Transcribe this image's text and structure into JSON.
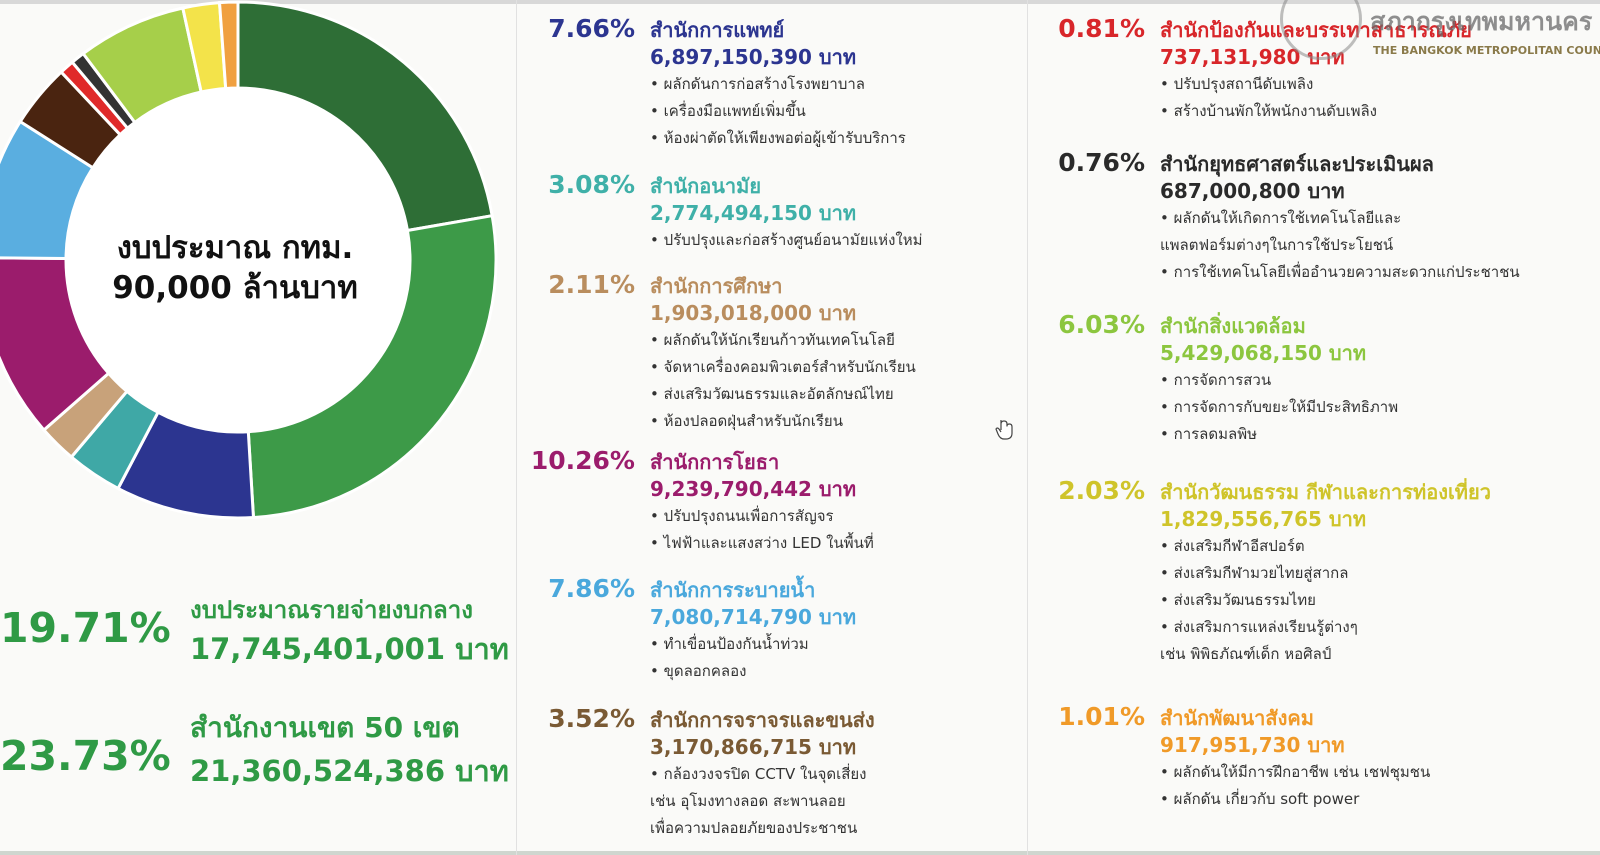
{
  "chart_data": {
    "type": "pie",
    "title": "งบประมาณ กทม.",
    "subtitle": "90,000 ล้านบาท",
    "slices": [
      {
        "label": "งบประมาณรายจ่ายงบกลาง",
        "value": 19.71,
        "color": "#2e6e36"
      },
      {
        "label": "สำนักงานเขต 50 เขต",
        "value": 23.73,
        "color": "#3d9a48"
      },
      {
        "label": "สำนักการแพทย์",
        "value": 7.66,
        "color": "#2c3590"
      },
      {
        "label": "สำนักอนามัย",
        "value": 3.08,
        "color": "#3fa8a6"
      },
      {
        "label": "สำนักการศึกษา",
        "value": 2.11,
        "color": "#c8a27a"
      },
      {
        "label": "สำนักการโยธา",
        "value": 10.26,
        "color": "#9b1c6c"
      },
      {
        "label": "สำนักการระบายน้ำ",
        "value": 7.86,
        "color": "#5aaee0"
      },
      {
        "label": "สำนักการจราจรและขนส่ง",
        "value": 3.52,
        "color": "#4a2410"
      },
      {
        "label": "สำนักป้องกันและบรรเทาสาธารณภัย",
        "value": 0.81,
        "color": "#e02a2a"
      },
      {
        "label": "สำนักยุทธศาสตร์และประเมินผล",
        "value": 0.76,
        "color": "#333333"
      },
      {
        "label": "สำนักสิ่งแวดล้อม",
        "value": 6.03,
        "color": "#a6cf4a"
      },
      {
        "label": "สำนักวัฒนธรรม กีฬาและการท่องเที่ยว",
        "value": 2.03,
        "color": "#f3e34a"
      },
      {
        "label": "สำนักพัฒนาสังคม",
        "value": 1.01,
        "color": "#f0a040"
      }
    ]
  },
  "featured": [
    {
      "pct": "19.71%",
      "name": "งบประมาณรายจ่ายงบกลาง",
      "amount": "17,745,401,001 บาท"
    },
    {
      "pct": "23.73%",
      "name": "สำนักงานเขต 50 เขต",
      "amount": "21,360,524,386 บาท"
    }
  ],
  "offices": [
    {
      "pct": "7.66%",
      "name": "สำนักการแพทย์",
      "amount": "6,897,150,390 บาท",
      "color": "#2c3590",
      "bullets": [
        "• ผลักดันการก่อสร้างโรงพยาบาล",
        "• เครื่องมือแพทย์เพิ่มขึ้น",
        "• ห้องผ่าตัดให้เพียงพอต่อผู้เข้ารับบริการ"
      ]
    },
    {
      "pct": "3.08%",
      "name": "สำนักอนามัย",
      "amount": "2,774,494,150 บาท",
      "color": "#3fb0a8",
      "bullets": [
        "• ปรับปรุงและก่อสร้างศูนย์อนามัยแห่งใหม่"
      ]
    },
    {
      "pct": "2.11%",
      "name": "สำนักการศึกษา",
      "amount": "1,903,018,000 บาท",
      "color": "#b98d5e",
      "bullets": [
        "• ผลักดันให้นักเรียนก้าวทันเทคโนโลยี",
        "• จัดหาเครื่องคอมพิวเตอร์สำหรับนักเรียน",
        "• ส่งเสริมวัฒนธรรมและอัตลักษณ์ไทย",
        "• ห้องปลอดฝุ่นสำหรับนักเรียน"
      ]
    },
    {
      "pct": "10.26%",
      "name": "สำนักการโยธา",
      "amount": "9,239,790,442 บาท",
      "color": "#9b1c6c",
      "bullets": [
        "• ปรับปรุงถนนเพื่อการสัญจร",
        "• ไฟฟ้าและแสงสว่าง LED ในพื้นที่"
      ]
    },
    {
      "pct": "7.86%",
      "name": "สำนักการระบายน้ำ",
      "amount": "7,080,714,790 บาท",
      "color": "#4aa8dc",
      "bullets": [
        "• ทำเขื่อนป้องกันน้ำท่วม",
        "• ขุดลอกคลอง"
      ]
    },
    {
      "pct": "3.52%",
      "name": "สำนักการจราจรและขนส่ง",
      "amount": "3,170,866,715 บาท",
      "color": "#7a5a34",
      "bullets": [
        "• กล้องวงจรปิด CCTV ในจุดเสี่ยง",
        "เช่น อุโมงทางลอด สะพานลอย",
        "เพื่อความปลอยภัยของประชาชน"
      ]
    },
    {
      "pct": "0.81%",
      "name": "สำนักป้องกันและบรรเทาสาธารณภัย",
      "amount": "737,131,980 บาท",
      "color": "#d8262a",
      "bullets": [
        "• ปรับปรุงสถานีดับเพลิง",
        "• สร้างบ้านพักให้พนักงานดับเพลิง"
      ]
    },
    {
      "pct": "0.76%",
      "name": "สำนักยุทธศาสตร์และประเมินผล",
      "amount": "687,000,800 บาท",
      "color": "#2a2a2a",
      "bullets": [
        "• ผลักดันให้เกิดการใช้เทคโนโลยีและ",
        "แพลตฟอร์มต่างๆในการใช้ประโยชน์",
        "• การใช้เทคโนโลยีเพื่ออำนวยความสะดวกแก่ประชาชน"
      ]
    },
    {
      "pct": "6.03%",
      "name": "สำนักสิ่งแวดล้อม",
      "amount": "5,429,068,150 บาท",
      "color": "#8cc63f",
      "bullets": [
        "• การจัดการสวน",
        "• การจัดการกับขยะให้มีประสิทธิภาพ",
        "• การลดมลพิษ"
      ]
    },
    {
      "pct": "2.03%",
      "name": "สำนักวัฒนธรรม กีฬาและการท่องเที่ยว",
      "amount": "1,829,556,765 บาท",
      "color": "#cfc42a",
      "bullets": [
        "• ส่งเสริมกีฬาอีสปอร์ต",
        "• ส่งเสริมกีฬามวยไทยสู่สากล",
        "• ส่งเสริมวัฒนธรรมไทย",
        "• ส่งเสริมการแหล่งเรียนรู้ต่างๆ",
        "เช่น พิพิธภัณฑ์เด็ก หอศิลป์"
      ]
    },
    {
      "pct": "1.01%",
      "name": "สำนักพัฒนาสังคม",
      "amount": "917,951,730 บาท",
      "color": "#f09a28",
      "bullets": [
        "• ผลักดันให้มีการฝึกอาชีพ เช่น เชฟชุมชน",
        "• ผลักดัน เกี่ยวกับ soft power"
      ]
    }
  ],
  "logo": {
    "thai": "สภากรุงเทพมหานคร",
    "english": "THE BANGKOK METROPOLITAN COUNCIL"
  }
}
